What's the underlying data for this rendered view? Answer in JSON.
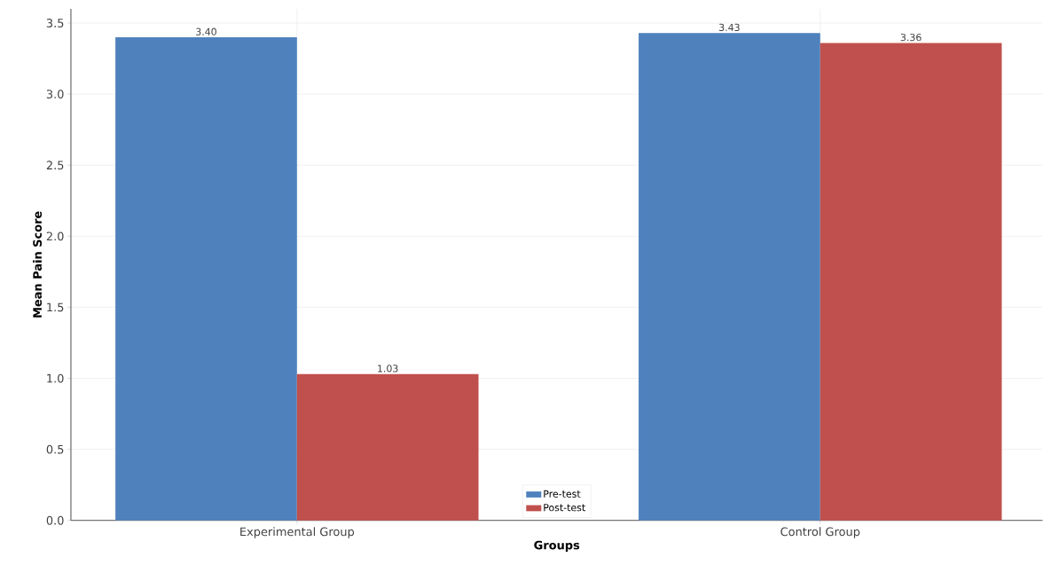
{
  "chart_data": {
    "type": "bar",
    "xlabel": "Groups",
    "ylabel": "Mean Pain Score",
    "categories": [
      "Experimental Group",
      "Control Group"
    ],
    "series": [
      {
        "name": "Pre-test",
        "color": "#4f81bd",
        "values": [
          3.4,
          3.43
        ],
        "value_labels": [
          "3.40",
          "3.43"
        ]
      },
      {
        "name": "Post-test",
        "color": "#c0504d",
        "values": [
          1.03,
          3.36
        ],
        "value_labels": [
          "1.03",
          "3.36"
        ]
      }
    ],
    "ylim": [
      0,
      3.6
    ],
    "yticks": [
      {
        "value": 0,
        "label": "0.0"
      },
      {
        "value": 0.5,
        "label": "0.5"
      },
      {
        "value": 1,
        "label": "1.0"
      },
      {
        "value": 1.5,
        "label": "1.5"
      },
      {
        "value": 2,
        "label": "2.0"
      },
      {
        "value": 2.5,
        "label": "2.5"
      },
      {
        "value": 3,
        "label": "3.0"
      },
      {
        "value": 3.5,
        "label": "3.5"
      }
    ],
    "grid": true,
    "legend": "bottom"
  }
}
